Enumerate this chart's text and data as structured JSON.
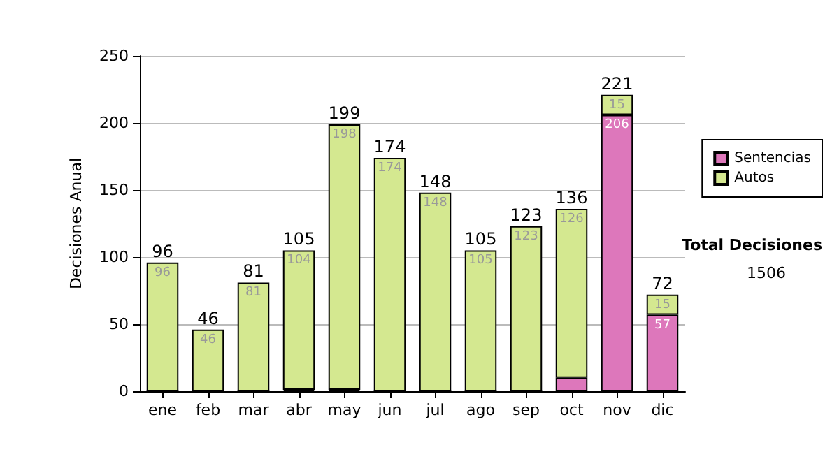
{
  "chart_data": {
    "type": "bar",
    "ylabel": "Decisiones Anual",
    "categories": [
      "ene",
      "feb",
      "mar",
      "abr",
      "may",
      "jun",
      "jul",
      "ago",
      "sep",
      "oct",
      "nov",
      "dic"
    ],
    "stacked": true,
    "series": [
      {
        "name": "Sentencias",
        "color": "#dd77bb",
        "values": [
          0,
          0,
          0,
          1,
          1,
          0,
          0,
          0,
          0,
          10,
          206,
          57
        ],
        "value_labels": [
          null,
          null,
          null,
          null,
          null,
          null,
          null,
          null,
          null,
          null,
          "206",
          "57"
        ]
      },
      {
        "name": "Autos",
        "color": "#d4e890",
        "values": [
          96,
          46,
          81,
          104,
          198,
          174,
          148,
          105,
          123,
          126,
          15,
          15
        ],
        "value_labels": [
          "96",
          "46",
          "81",
          "104",
          "198",
          "174",
          "148",
          "105",
          "123",
          "126",
          "15",
          "15"
        ]
      }
    ],
    "totals": [
      "96",
      "46",
      "81",
      "105",
      "199",
      "174",
      "148",
      "105",
      "123",
      "136",
      "221",
      "72"
    ],
    "ylim": [
      0,
      250
    ],
    "yticks": [
      0,
      50,
      100,
      150,
      200,
      250
    ],
    "grid": "y",
    "legend": "right",
    "annotations": [
      "Total Decisiones",
      "1506"
    ]
  }
}
